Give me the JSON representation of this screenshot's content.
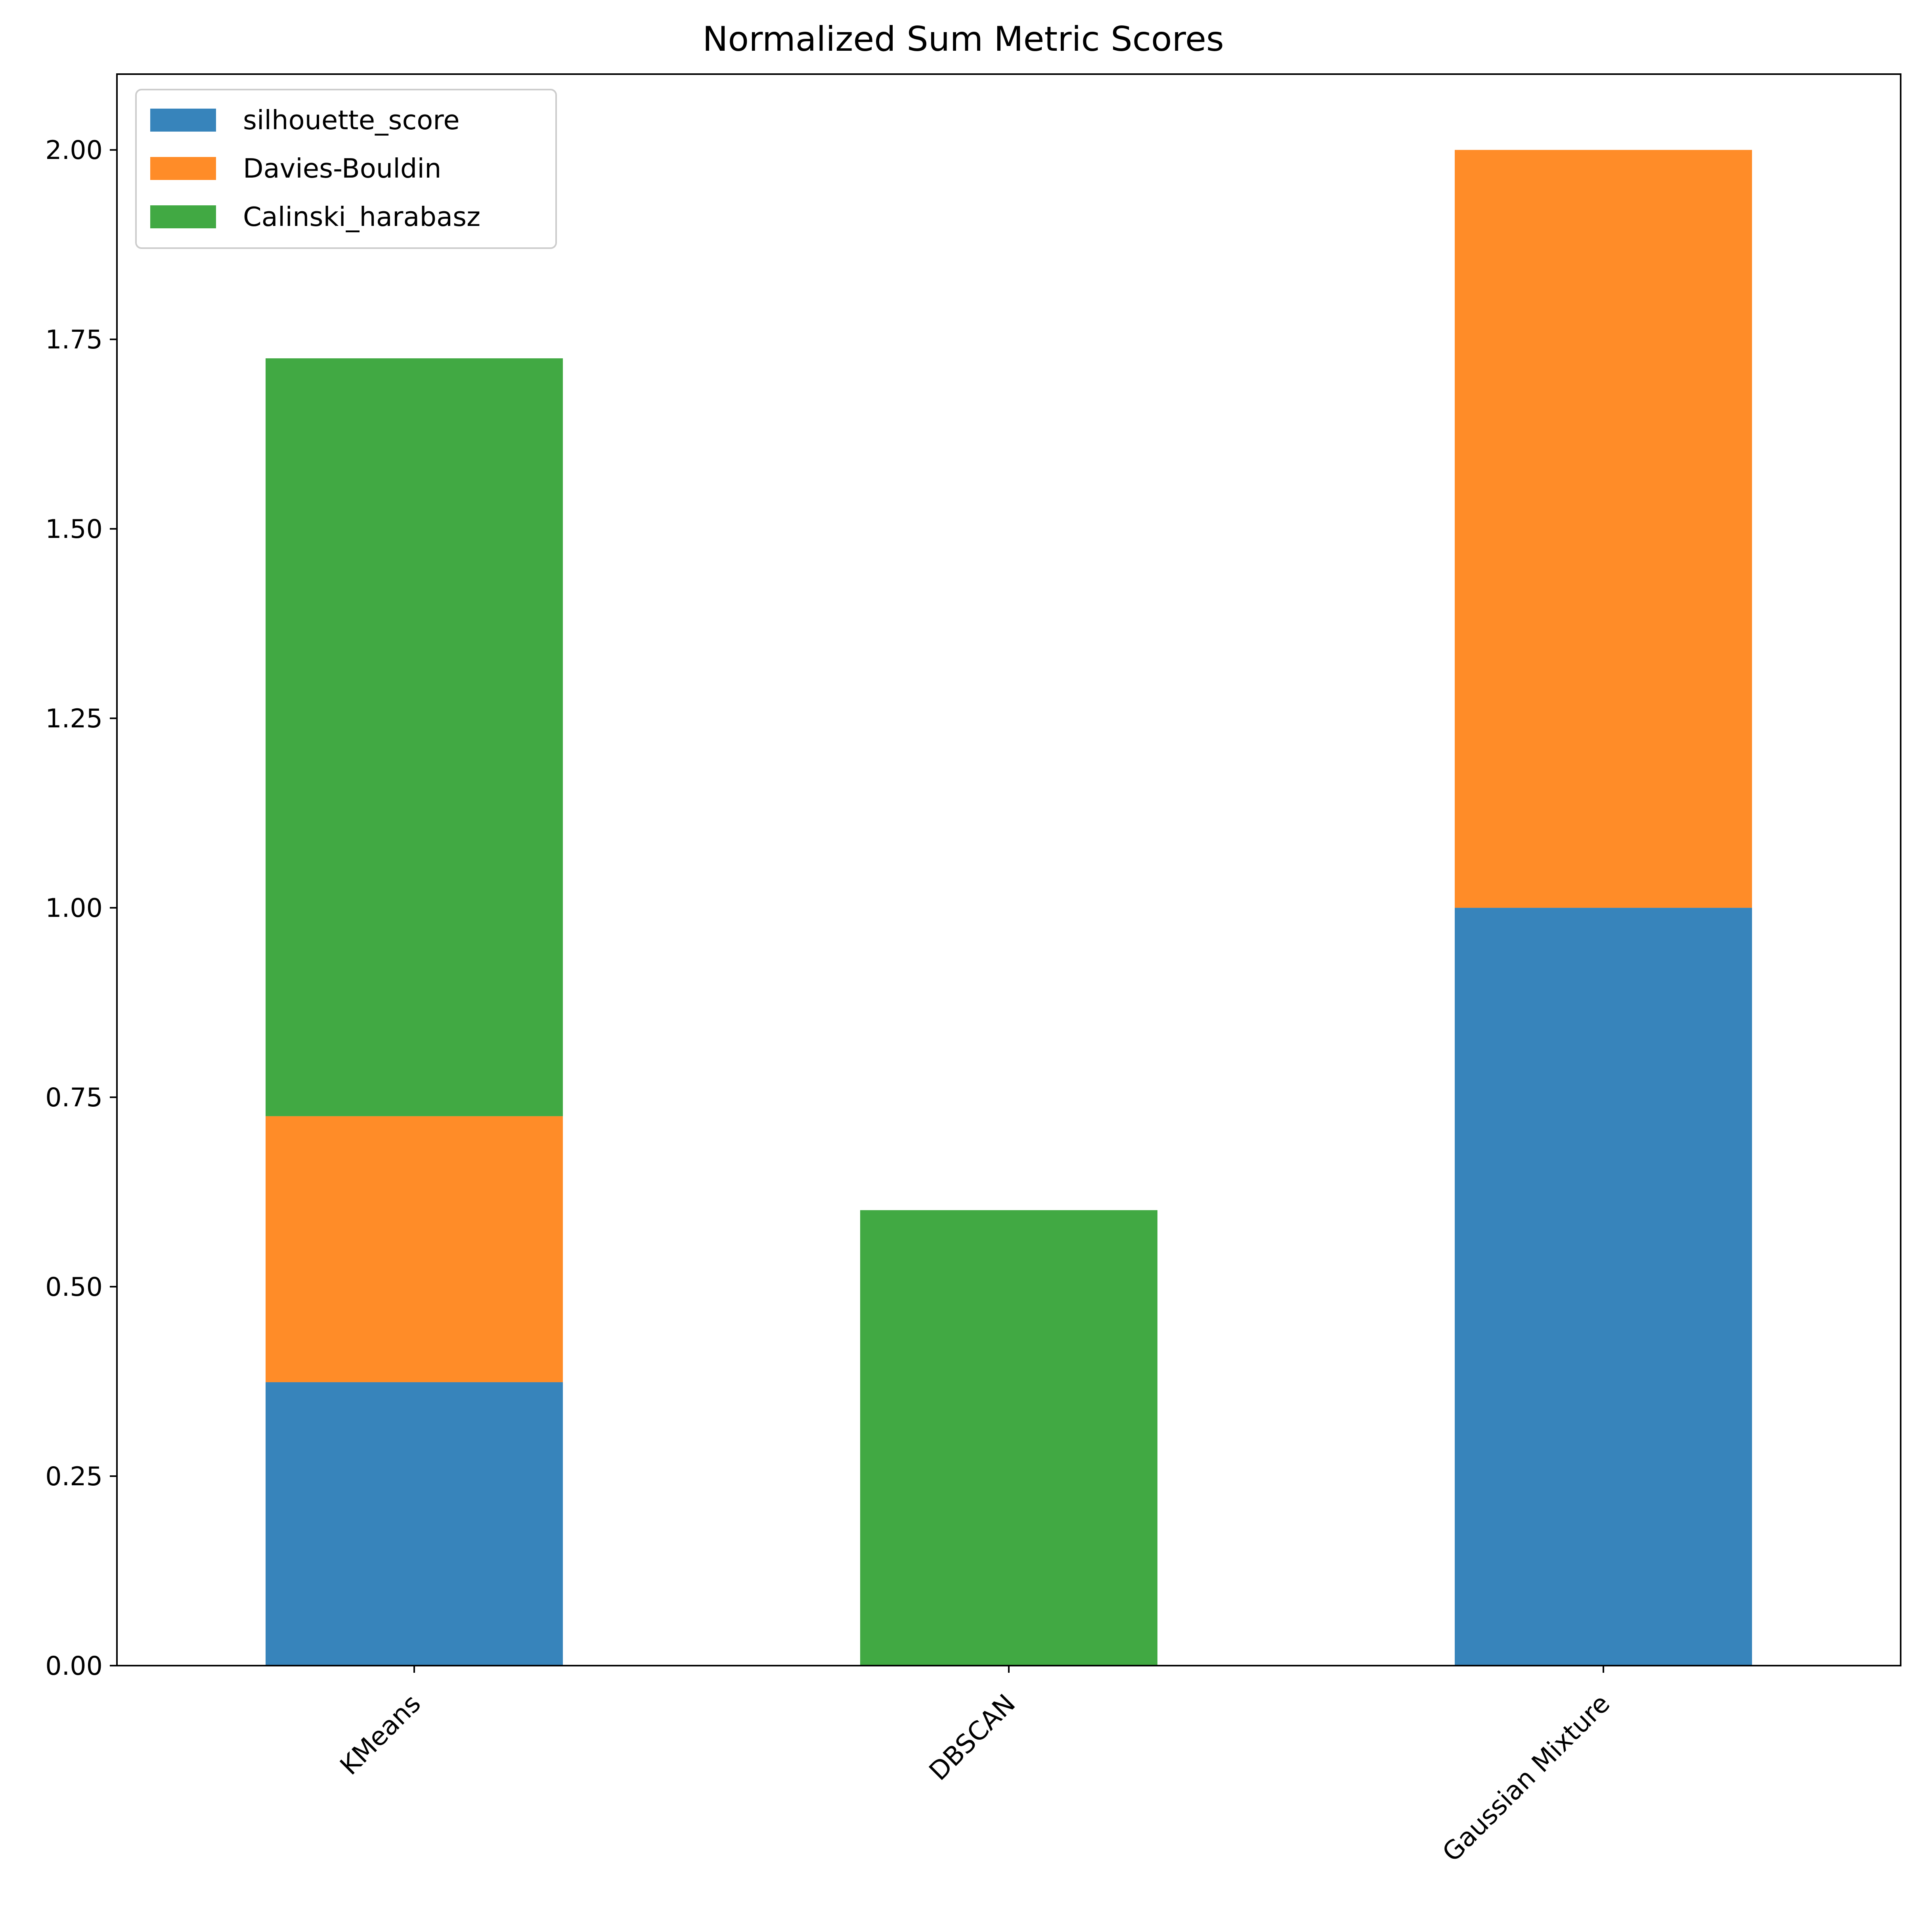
{
  "chart_data": {
    "type": "bar",
    "stacked": true,
    "title": "Normalized Sum Metric Scores",
    "xlabel": "",
    "ylabel": "",
    "categories": [
      "KMeans",
      "DBSCAN",
      "Gaussian Mixture"
    ],
    "series": [
      {
        "name": "silhouette_score",
        "color": "#3784bb",
        "values": [
          0.374,
          0.0,
          1.0
        ]
      },
      {
        "name": "Davies-Bouldin",
        "color": "#ff8c28",
        "values": [
          0.351,
          0.0,
          1.0
        ]
      },
      {
        "name": "Calinski_harabasz",
        "color": "#41a943",
        "values": [
          1.0,
          0.601,
          0.0
        ]
      }
    ],
    "ylim": [
      0,
      2.1
    ],
    "yticks": [
      "0.00",
      "0.25",
      "0.50",
      "0.75",
      "1.00",
      "1.25",
      "1.50",
      "1.75",
      "2.00"
    ],
    "ytick_values": [
      0,
      0.25,
      0.5,
      0.75,
      1.0,
      1.25,
      1.5,
      1.75,
      2.0
    ],
    "xtick_rotation_deg": 45,
    "grid": false,
    "legend_position": "upper-left"
  }
}
